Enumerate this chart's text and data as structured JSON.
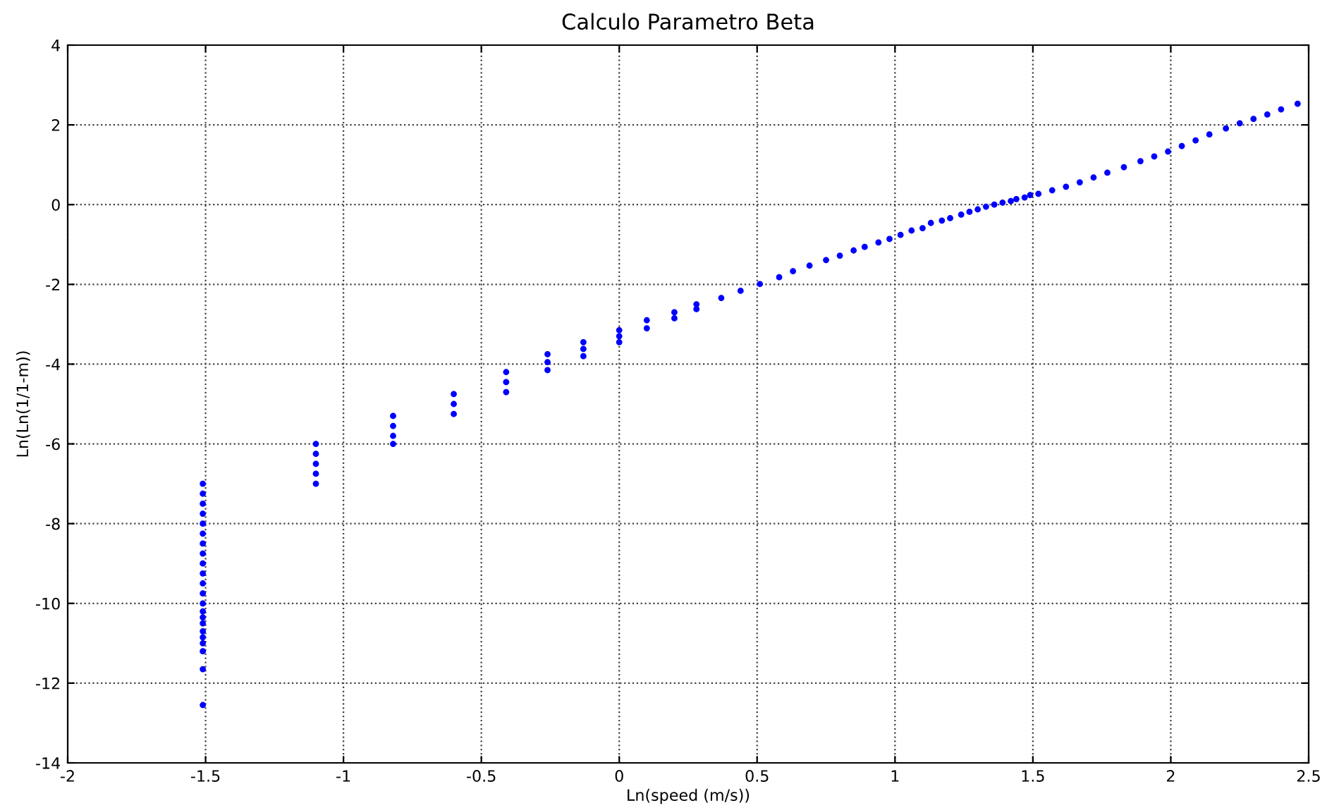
{
  "chart_data": {
    "type": "scatter",
    "title": "Calculo Parametro Beta",
    "xlabel": "Ln(speed (m/s))",
    "ylabel": "Ln(Ln(1/1-m))",
    "x": [
      -1.51,
      -1.51,
      -1.51,
      -1.51,
      -1.51,
      -1.51,
      -1.51,
      -1.51,
      -1.51,
      -1.51,
      -1.51,
      -1.51,
      -1.51,
      -1.51,
      -1.51,
      -1.51,
      -1.51,
      -1.51,
      -1.51,
      -1.51,
      -1.51,
      -1.51,
      -1.1,
      -1.1,
      -1.1,
      -1.1,
      -1.1,
      -0.82,
      -0.82,
      -0.82,
      -0.82,
      -0.6,
      -0.6,
      -0.6,
      -0.41,
      -0.41,
      -0.41,
      -0.26,
      -0.26,
      -0.26,
      -0.13,
      -0.13,
      -0.13,
      0.0,
      0.0,
      0.0,
      0.1,
      0.1,
      0.2,
      0.2,
      0.28,
      0.28,
      0.37,
      0.44,
      0.51,
      0.58,
      0.63,
      0.69,
      0.75,
      0.8,
      0.85,
      0.89,
      0.94,
      0.98,
      1.02,
      1.06,
      1.1,
      1.13,
      1.17,
      1.2,
      1.24,
      1.27,
      1.3,
      1.33,
      1.36,
      1.39,
      1.42,
      1.44,
      1.47,
      1.49,
      1.52,
      1.57,
      1.62,
      1.67,
      1.72,
      1.77,
      1.83,
      1.89,
      1.94,
      1.99,
      2.04,
      2.09,
      2.14,
      2.2,
      2.25,
      2.3,
      2.35,
      2.4,
      2.46
    ],
    "values": [
      -7.0,
      -7.25,
      -7.5,
      -7.75,
      -8.0,
      -8.25,
      -8.5,
      -8.75,
      -9.0,
      -9.25,
      -9.5,
      -9.75,
      -10.0,
      -10.2,
      -10.35,
      -10.5,
      -10.7,
      -10.85,
      -11.0,
      -11.2,
      -11.65,
      -12.55,
      -6.0,
      -6.25,
      -6.5,
      -6.75,
      -7.0,
      -5.3,
      -5.55,
      -5.8,
      -6.0,
      -4.75,
      -5.0,
      -5.25,
      -4.2,
      -4.45,
      -4.7,
      -3.75,
      -3.95,
      -4.15,
      -3.45,
      -3.62,
      -3.8,
      -3.15,
      -3.3,
      -3.45,
      -2.9,
      -3.1,
      -2.7,
      -2.85,
      -2.5,
      -2.62,
      -2.34,
      -2.16,
      -1.99,
      -1.82,
      -1.67,
      -1.53,
      -1.39,
      -1.28,
      -1.15,
      -1.06,
      -0.95,
      -0.86,
      -0.76,
      -0.65,
      -0.59,
      -0.46,
      -0.4,
      -0.34,
      -0.25,
      -0.18,
      -0.12,
      -0.05,
      0.0,
      0.05,
      0.09,
      0.14,
      0.18,
      0.24,
      0.27,
      0.36,
      0.45,
      0.56,
      0.68,
      0.8,
      0.94,
      1.09,
      1.21,
      1.33,
      1.47,
      1.61,
      1.76,
      1.91,
      2.04,
      2.15,
      2.26,
      2.39,
      2.53
    ],
    "color": "#0000ff",
    "marker": "circle",
    "xlim": [
      -2,
      2.5
    ],
    "xticks": [
      -2,
      -1.5,
      -1,
      -0.5,
      0,
      0.5,
      1,
      1.5,
      2,
      2.5
    ],
    "ylim": [
      -14,
      4
    ],
    "yticks": [
      -14,
      -12,
      -10,
      -8,
      -6,
      -4,
      -2,
      0,
      2,
      4
    ],
    "grid": true,
    "line_style": "dotted"
  }
}
